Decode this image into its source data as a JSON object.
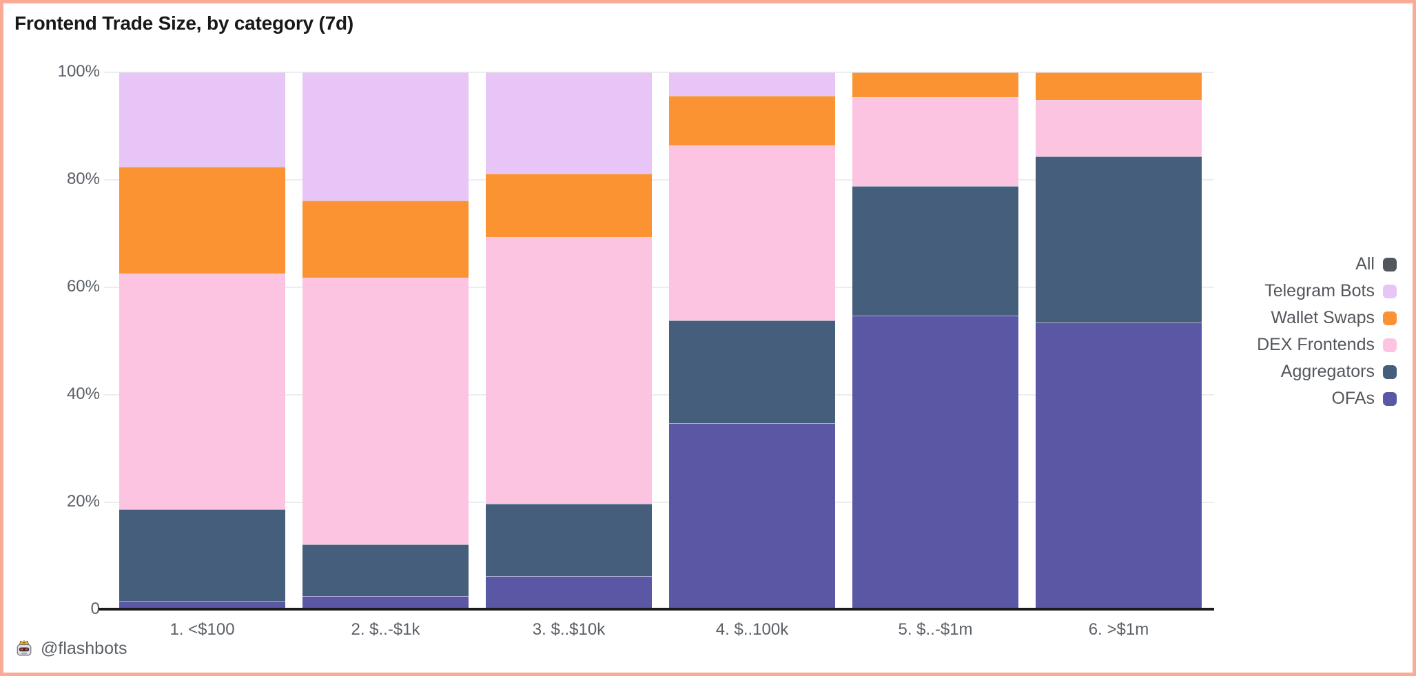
{
  "page": {
    "attribution": "@flashbots",
    "border_color": "#f8ab97",
    "background": "#ffffff"
  },
  "chart_data": {
    "type": "bar",
    "stacked": true,
    "title": "Frontend Trade Size, by category (7d)",
    "categories": [
      "1. <$100",
      "2. $..-$1k",
      "3. $..$10k",
      "4. $..100k",
      "5. $..-$1m",
      "6. >$1m"
    ],
    "xlabel": "",
    "ylabel": "",
    "ylim": [
      0,
      100
    ],
    "yticks": [
      {
        "label": "100%",
        "value": 100
      },
      {
        "label": "80%",
        "value": 80
      },
      {
        "label": "60%",
        "value": 60
      },
      {
        "label": "40%",
        "value": 40
      },
      {
        "label": "20%",
        "value": 20
      },
      {
        "label": "0",
        "value": 0
      }
    ],
    "grid": true,
    "legend_position": "right",
    "legend": [
      {
        "name": "All",
        "color": "#53575d"
      },
      {
        "name": "Telegram Bots",
        "color": "#e7c6f7"
      },
      {
        "name": "Wallet Swaps",
        "color": "#fc9332"
      },
      {
        "name": "DEX Frontends",
        "color": "#fcc4e1"
      },
      {
        "name": "Aggregators",
        "color": "#455e7c"
      },
      {
        "name": "OFAs",
        "color": "#5a57a5"
      }
    ],
    "series": [
      {
        "name": "OFAs",
        "color": "#5a57a5",
        "values": [
          1.6,
          2.6,
          6.3,
          34.8,
          54.7,
          53.4
        ]
      },
      {
        "name": "Aggregators",
        "color": "#455e7c",
        "values": [
          17.1,
          9.6,
          13.5,
          19.0,
          24.1,
          30.9
        ]
      },
      {
        "name": "DEX Frontends",
        "color": "#fcc4e1",
        "values": [
          43.8,
          49.6,
          49.6,
          32.6,
          16.6,
          10.6
        ]
      },
      {
        "name": "Wallet Swaps",
        "color": "#fc9332",
        "values": [
          19.9,
          14.4,
          11.8,
          9.3,
          4.6,
          5.1
        ]
      },
      {
        "name": "Telegram Bots",
        "color": "#e7c6f7",
        "values": [
          17.6,
          23.8,
          18.8,
          4.3,
          0,
          0
        ]
      }
    ]
  }
}
